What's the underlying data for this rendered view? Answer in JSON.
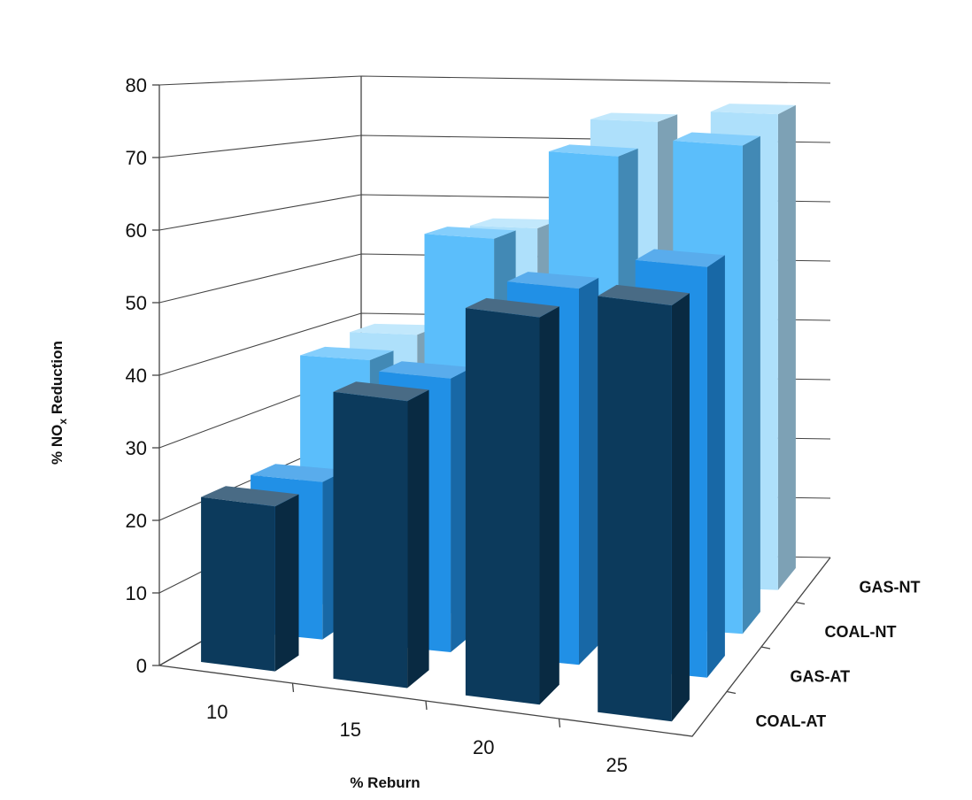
{
  "chart_data": {
    "type": "bar",
    "subtype": "3d-column",
    "title": "",
    "xlabel": "% Reburn",
    "ylabel_main": "% NO",
    "ylabel_sub": "x",
    "ylabel_rest": " Reduction",
    "ylim": [
      0,
      80
    ],
    "yticks": [
      "0",
      "10",
      "20",
      "30",
      "40",
      "50",
      "60",
      "70",
      "80"
    ],
    "categories": [
      "10",
      "15",
      "20",
      "25"
    ],
    "series": [
      {
        "name": "COAL-AT",
        "color": "#0c3a5c",
        "values": [
          23,
          40,
          54,
          58
        ]
      },
      {
        "name": "GAS-AT",
        "color": "#2190e6",
        "values": [
          23,
          40,
          55,
          60
        ]
      },
      {
        "name": "COAL-NT",
        "color": "#5bbefb",
        "values": [
          38,
          58,
          72,
          75
        ]
      },
      {
        "name": "GAS-NT",
        "color": "#aee0fb",
        "values": [
          39,
          57,
          75,
          77
        ]
      }
    ]
  }
}
